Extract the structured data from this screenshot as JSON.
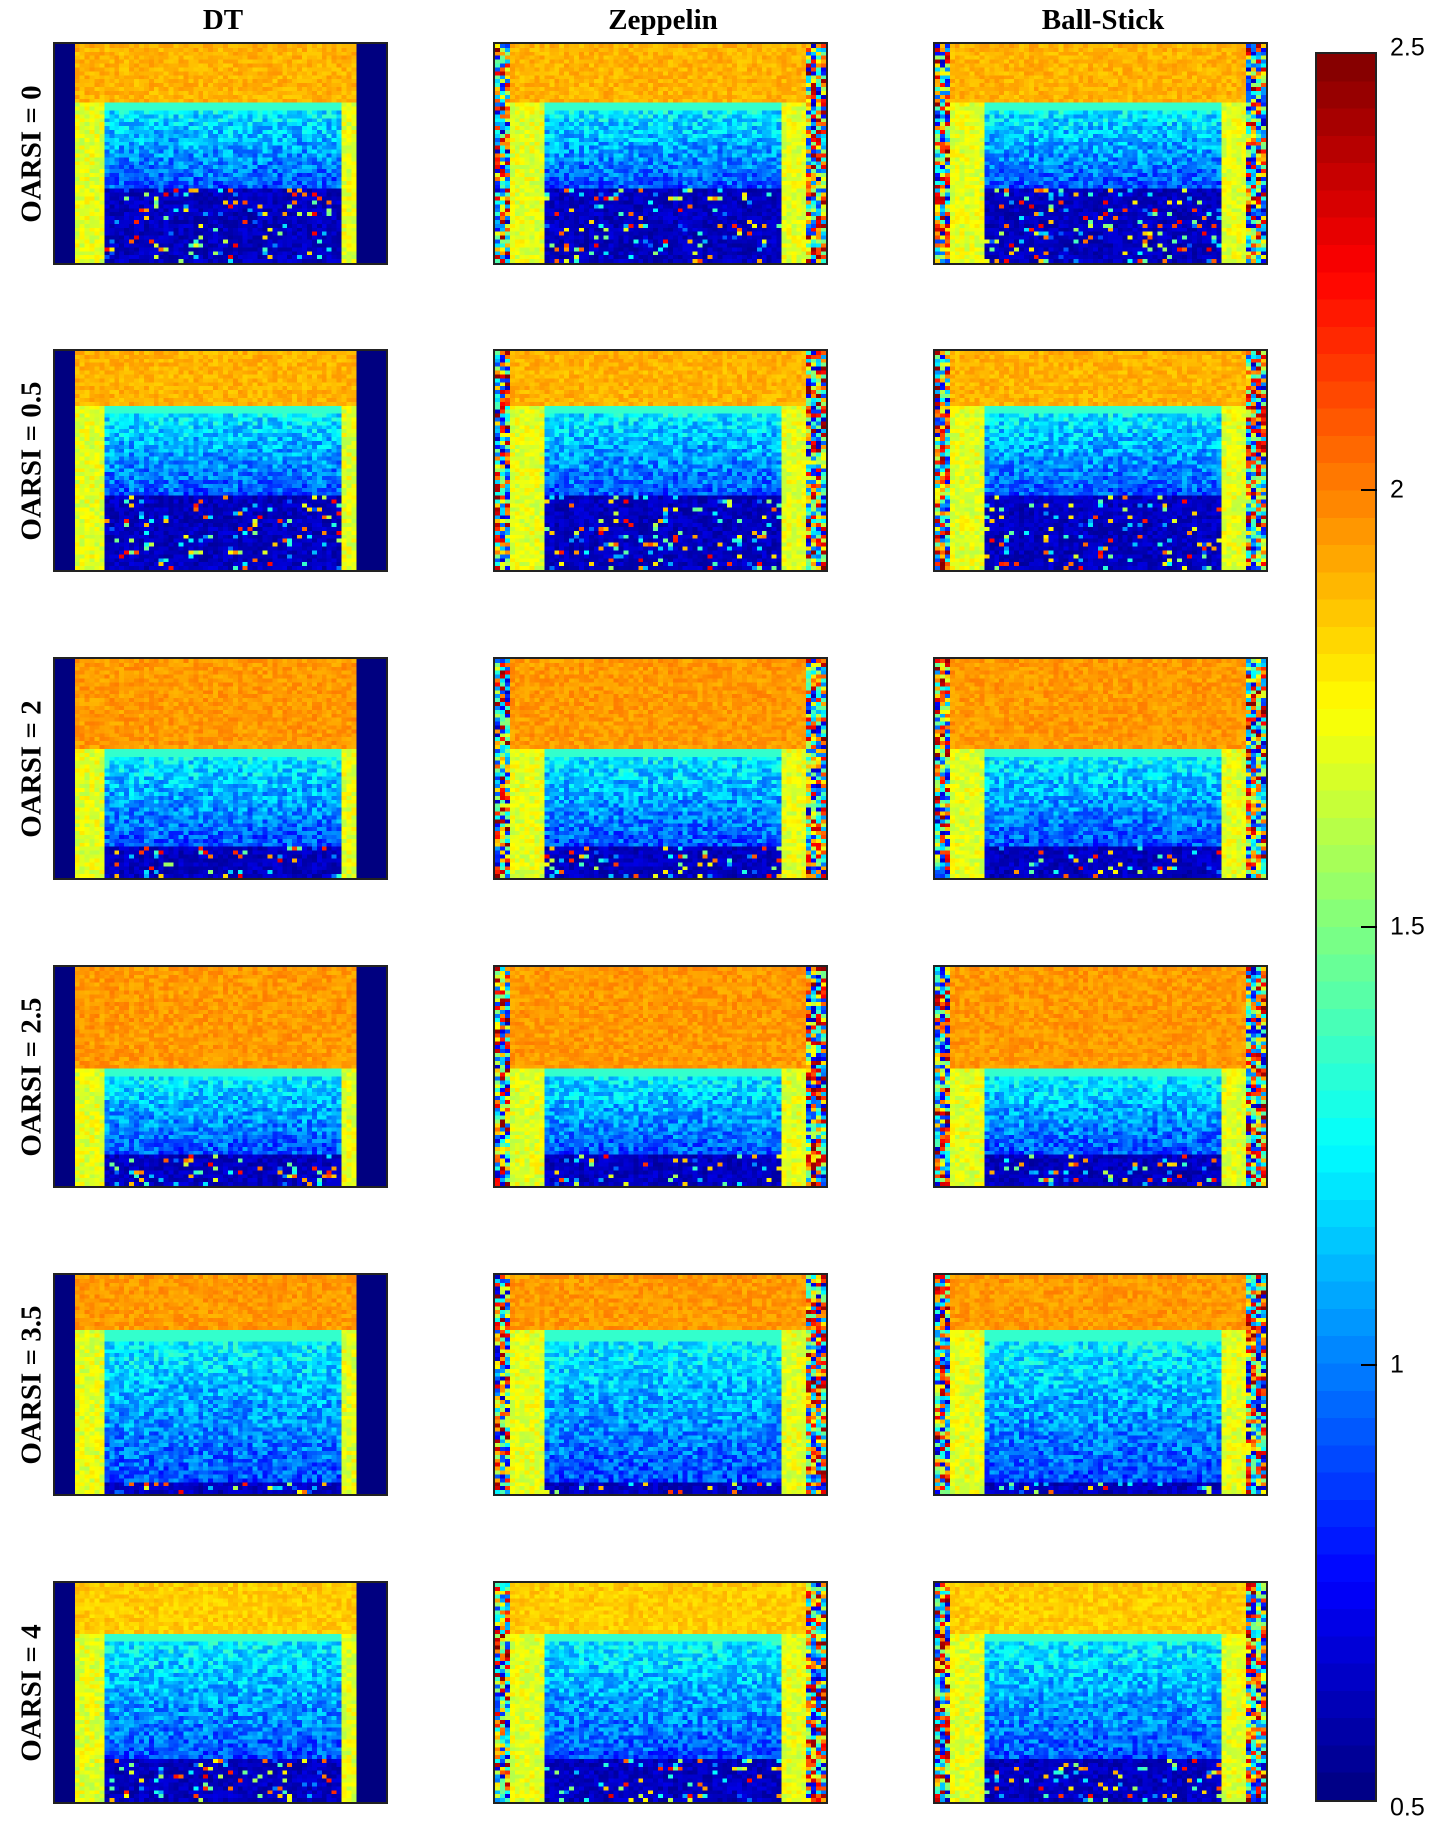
{
  "columns": [
    "DT",
    "Zeppelin",
    "Ball-Stick"
  ],
  "rows": [
    "OARSI = 0",
    "OARSI = 0.5",
    "OARSI = 2",
    "OARSI = 2.5",
    "OARSI = 3.5",
    "OARSI = 4"
  ],
  "colorbar": {
    "colormap": "jet",
    "min": 0.5,
    "max": 2.5,
    "ticks": [
      "2.5",
      "2",
      "1.5",
      "1",
      "0.5"
    ],
    "tick_values": [
      2.5,
      2.0,
      1.5,
      1.0,
      0.5
    ]
  },
  "colors": {
    "top_band": "#f0a02a",
    "middle_band": "#3a8ee6",
    "bottom_band": "#0818a0",
    "background_column": "#00008f",
    "bright_noise": "#ffe033",
    "dark_red": "#8b0000"
  }
}
